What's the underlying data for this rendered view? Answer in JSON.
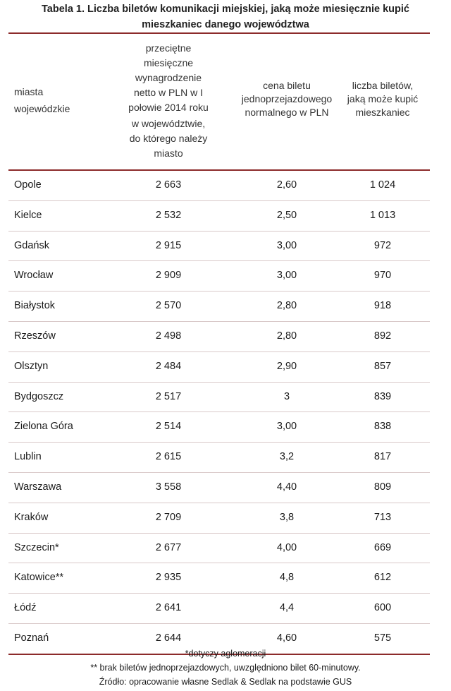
{
  "title": {
    "line1": "Tabela 1. Liczba biletów komunikacji miejskiej, jaką może miesięcznie kupić",
    "line2": "mieszkaniec danego województwa"
  },
  "headers": {
    "city": [
      "miasta",
      "wojewódzkie"
    ],
    "salary": [
      "przeciętne",
      "miesięczne",
      "wynagrodzenie",
      "netto w PLN w I",
      "połowie 2014  roku",
      "w województwie,",
      "do którego należy",
      "miasto"
    ],
    "price": [
      "cena biletu",
      "jednoprzejazdowego",
      "normalnego w PLN"
    ],
    "count": [
      "liczba biletów,",
      "jaką może kupić",
      "mieszkaniec"
    ]
  },
  "rows": [
    {
      "city": "Opole",
      "salary": "2 663",
      "price": "2,60",
      "count": "1 024"
    },
    {
      "city": "Kielce",
      "salary": "2 532",
      "price": "2,50",
      "count": "1 013"
    },
    {
      "city": "Gdańsk",
      "salary": "2 915",
      "price": "3,00",
      "count": "972"
    },
    {
      "city": "Wrocław",
      "salary": "2 909",
      "price": "3,00",
      "count": "970"
    },
    {
      "city": "Białystok",
      "salary": "2 570",
      "price": "2,80",
      "count": "918"
    },
    {
      "city": "Rzeszów",
      "salary": "2 498",
      "price": "2,80",
      "count": "892"
    },
    {
      "city": "Olsztyn",
      "salary": "2 484",
      "price": "2,90",
      "count": "857"
    },
    {
      "city": "Bydgoszcz",
      "salary": "2 517",
      "price": "3",
      "count": "839"
    },
    {
      "city": "Zielona Góra",
      "salary": "2 514",
      "price": "3,00",
      "count": "838"
    },
    {
      "city": "Lublin",
      "salary": "2 615",
      "price": "3,2",
      "count": "817"
    },
    {
      "city": "Warszawa",
      "salary": "3 558",
      "price": "4,40",
      "count": "809"
    },
    {
      "city": "Kraków",
      "salary": "2 709",
      "price": "3,8",
      "count": "713"
    },
    {
      "city": "Szczecin*",
      "salary": "2 677",
      "price": "4,00",
      "count": "669"
    },
    {
      "city": "Katowice**",
      "salary": "2 935",
      "price": "4,8",
      "count": "612"
    },
    {
      "city": "Łódź",
      "salary": "2 641",
      "price": "4,4",
      "count": "600"
    },
    {
      "city": "Poznań",
      "salary": "2 644",
      "price": "4,60",
      "count": "575"
    }
  ],
  "notes": {
    "note1": "*dotyczy aglomeracji",
    "note2": "** brak biletów jednoprzejazdowych, uwzględniono bilet 60-minutowy.",
    "source": "Źródło: opracowanie własne Sedlak & Sedlak na podstawie GUS"
  },
  "colors": {
    "rule": "#8c2b2b"
  }
}
